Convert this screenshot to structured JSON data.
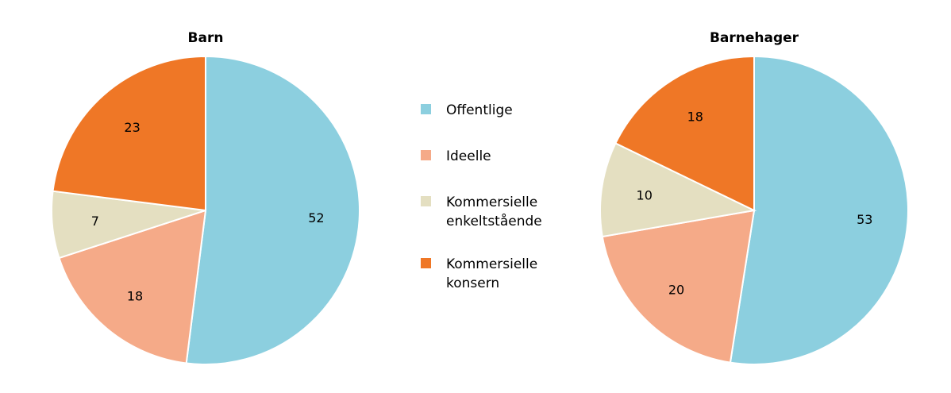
{
  "chart_data": [
    {
      "type": "pie",
      "title": "Barn",
      "categories": [
        "Offentlige",
        "Ideelle",
        "Kommersielle enkeltstående",
        "Kommersielle konsern"
      ],
      "values": [
        52,
        18,
        7,
        23
      ],
      "value_labels": [
        "52",
        "18",
        "7",
        "23"
      ],
      "start_angle_deg": 0,
      "direction": "clockwise"
    },
    {
      "type": "pie",
      "title": "Barnehager",
      "categories": [
        "Offentlige",
        "Ideelle",
        "Kommersielle enkeltstående",
        "Kommersielle konsern"
      ],
      "values": [
        53,
        20,
        10,
        18
      ],
      "value_labels": [
        "53",
        "20",
        "10",
        "18"
      ],
      "start_angle_deg": 0,
      "direction": "clockwise"
    }
  ],
  "legend": {
    "position": "center",
    "items": [
      {
        "lines": [
          "Offentlige"
        ],
        "color": "#8ccfdf"
      },
      {
        "lines": [
          "Ideelle"
        ],
        "color": "#f5aa88"
      },
      {
        "lines": [
          "Kommersielle",
          "enkeltstående"
        ],
        "color": "#e4dfc1"
      },
      {
        "lines": [
          "Kommersielle",
          "konsern"
        ],
        "color": "#ef7726"
      }
    ]
  }
}
